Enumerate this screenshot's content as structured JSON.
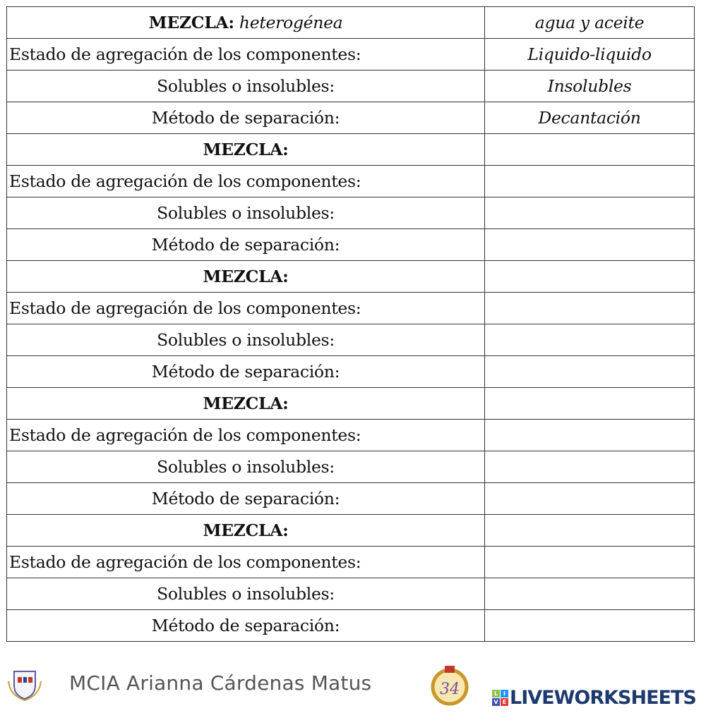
{
  "table": {
    "rows": [
      {
        "type": "header",
        "label": "MEZCLA:",
        "label_value": "heterogénea",
        "answer": "agua y aceite"
      },
      {
        "type": "state",
        "label": "Estado de agregación de los componentes:",
        "answer": "Liquido-liquido"
      },
      {
        "type": "field",
        "label": "Solubles o insolubles:",
        "answer": "Insolubles"
      },
      {
        "type": "field",
        "label": "Método de separación:",
        "answer": "Decantación"
      },
      {
        "type": "header",
        "label": "MEZCLA:",
        "label_value": "",
        "answer": ""
      },
      {
        "type": "state",
        "label": "Estado de agregación de los componentes:",
        "answer": ""
      },
      {
        "type": "field",
        "label": "Solubles o insolubles:",
        "answer": ""
      },
      {
        "type": "field",
        "label": "Método de separación:",
        "answer": ""
      },
      {
        "type": "header",
        "label": "MEZCLA:",
        "label_value": "",
        "answer": ""
      },
      {
        "type": "state",
        "label": "Estado de agregación de los componentes:",
        "answer": ""
      },
      {
        "type": "field",
        "label": "Solubles o insolubles:",
        "answer": ""
      },
      {
        "type": "field",
        "label": "Método de separación:",
        "answer": ""
      },
      {
        "type": "header",
        "label": "MEZCLA:",
        "label_value": "",
        "answer": ""
      },
      {
        "type": "state",
        "label": "Estado de agregación de los componentes:",
        "answer": ""
      },
      {
        "type": "field",
        "label": "Solubles o insolubles:",
        "answer": ""
      },
      {
        "type": "field",
        "label": "Método de separación:",
        "answer": ""
      },
      {
        "type": "header",
        "label": "MEZCLA:",
        "label_value": "",
        "answer": ""
      },
      {
        "type": "state",
        "label": "Estado de agregación de los componentes:",
        "answer": ""
      },
      {
        "type": "field",
        "label": "Solubles o insolubles:",
        "answer": ""
      },
      {
        "type": "field",
        "label": "Método de separación:",
        "answer": ""
      }
    ]
  },
  "footer": {
    "author": "MCIA Arianna Cárdenas Matus",
    "brand": "LIVEWORKSHEETS",
    "brand_mark": [
      "L",
      "I",
      "V",
      "E"
    ],
    "brand_colors": {
      "text": "#1d3a6e",
      "mark": [
        "#8bc34a",
        "#2196f3",
        "#3f51b5",
        "#e53935"
      ]
    }
  }
}
